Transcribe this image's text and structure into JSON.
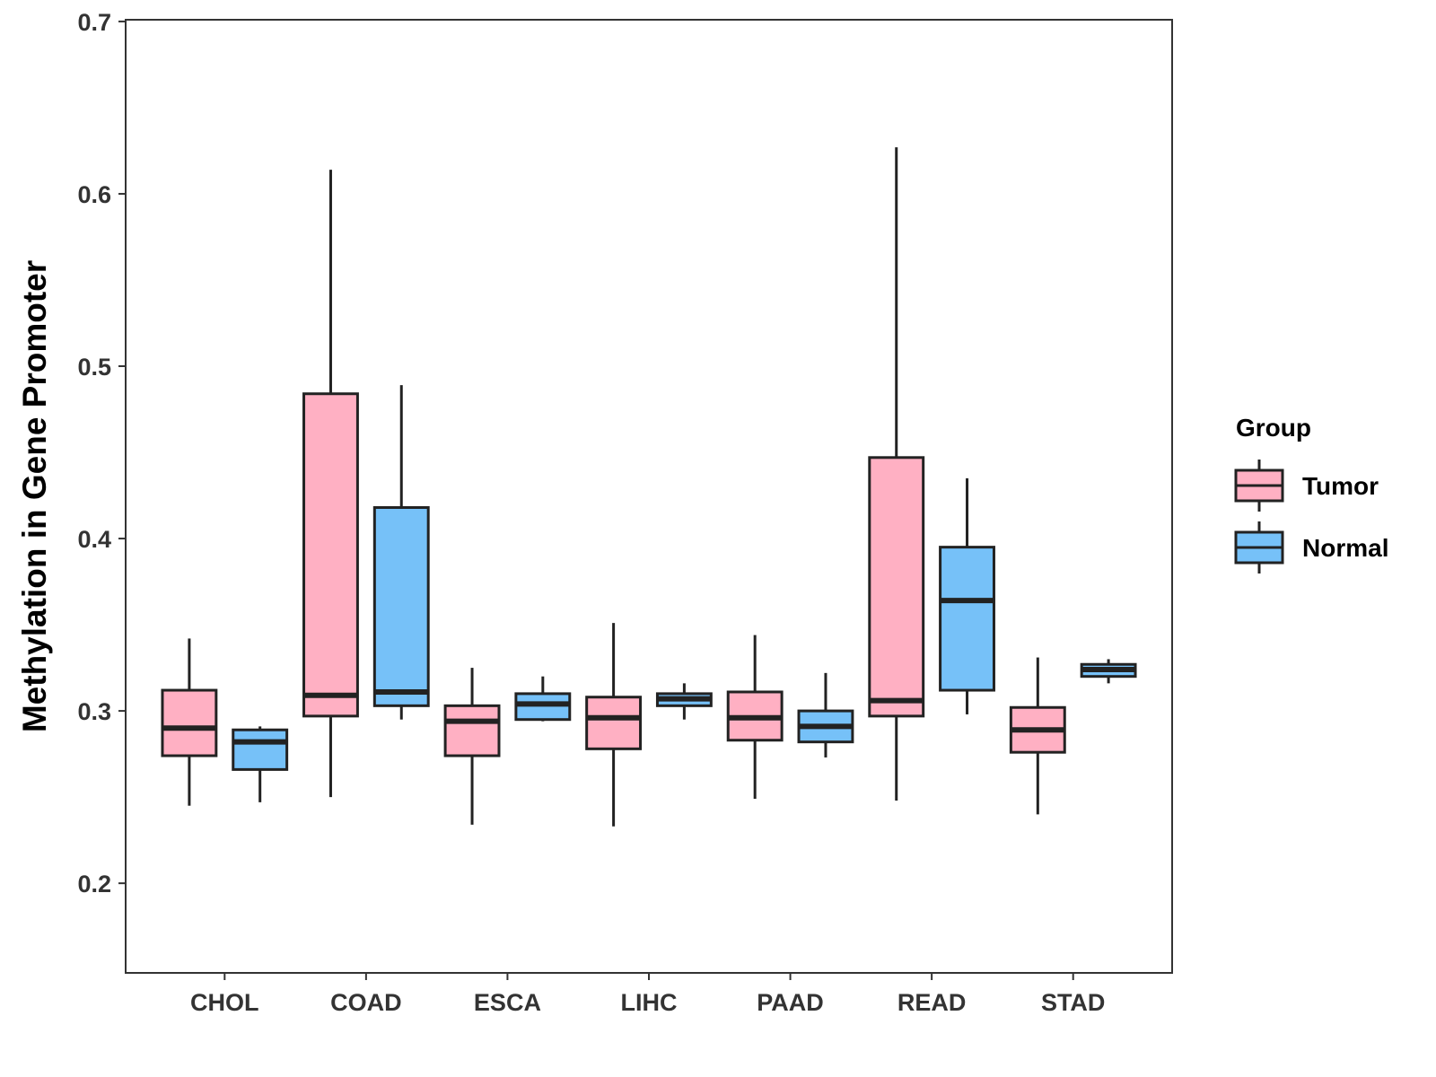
{
  "chart_data": {
    "type": "boxplot",
    "title": "",
    "xlabel": "",
    "ylabel": "Methylation in Gene Promoter",
    "ylim": [
      0.148,
      0.701
    ],
    "yticks": [
      "0.2",
      "0.3",
      "0.4",
      "0.5",
      "0.6",
      "0.7"
    ],
    "ytick_values": [
      0.2,
      0.3,
      0.4,
      0.5,
      0.6,
      0.7
    ],
    "categories": [
      "CHOL",
      "COAD",
      "ESCA",
      "LIHC",
      "PAAD",
      "READ",
      "STAD"
    ],
    "grid": false,
    "legend": {
      "title": "Group",
      "position": "right",
      "entries": [
        "Tumor",
        "Normal"
      ]
    },
    "series": [
      {
        "name": "Tumor",
        "color": "#FFB0C3",
        "boxes": [
          {
            "min": 0.245,
            "q1": 0.274,
            "median": 0.29,
            "q3": 0.312,
            "max": 0.342
          },
          {
            "min": 0.25,
            "q1": 0.297,
            "median": 0.309,
            "q3": 0.484,
            "max": 0.614
          },
          {
            "min": 0.234,
            "q1": 0.274,
            "median": 0.294,
            "q3": 0.303,
            "max": 0.325
          },
          {
            "min": 0.233,
            "q1": 0.278,
            "median": 0.296,
            "q3": 0.308,
            "max": 0.351
          },
          {
            "min": 0.249,
            "q1": 0.283,
            "median": 0.296,
            "q3": 0.311,
            "max": 0.344
          },
          {
            "min": 0.248,
            "q1": 0.297,
            "median": 0.306,
            "q3": 0.447,
            "max": 0.627
          },
          {
            "min": 0.24,
            "q1": 0.276,
            "median": 0.289,
            "q3": 0.302,
            "max": 0.331
          }
        ]
      },
      {
        "name": "Normal",
        "color": "#76C1F8",
        "boxes": [
          {
            "min": 0.247,
            "q1": 0.266,
            "median": 0.282,
            "q3": 0.289,
            "max": 0.291
          },
          {
            "min": 0.295,
            "q1": 0.303,
            "median": 0.311,
            "q3": 0.418,
            "max": 0.489
          },
          {
            "min": 0.294,
            "q1": 0.295,
            "median": 0.304,
            "q3": 0.31,
            "max": 0.32
          },
          {
            "min": 0.295,
            "q1": 0.303,
            "median": 0.307,
            "q3": 0.31,
            "max": 0.316
          },
          {
            "min": 0.273,
            "q1": 0.282,
            "median": 0.291,
            "q3": 0.3,
            "max": 0.322
          },
          {
            "min": 0.298,
            "q1": 0.312,
            "median": 0.364,
            "q3": 0.395,
            "max": 0.435
          },
          {
            "min": 0.316,
            "q1": 0.32,
            "median": 0.324,
            "q3": 0.327,
            "max": 0.33
          }
        ]
      }
    ]
  }
}
